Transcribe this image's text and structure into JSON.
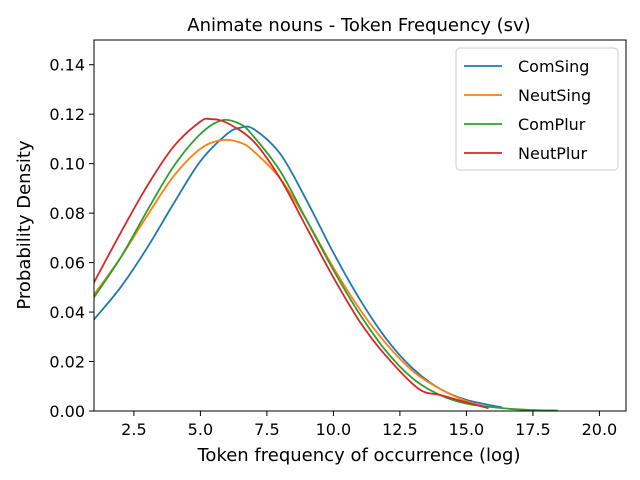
{
  "chart_data": {
    "type": "line",
    "title": "Animate nouns - Token Frequency (sv)",
    "xlabel": "Token frequency of occurrence (log)",
    "ylabel": "Probability Density",
    "xlim": [
      1.0,
      21.0
    ],
    "ylim": [
      0.0,
      0.15
    ],
    "xticks": [
      2.5,
      5.0,
      7.5,
      10.0,
      12.5,
      15.0,
      17.5,
      20.0
    ],
    "xtick_labels": [
      "2.5",
      "5.0",
      "7.5",
      "10.0",
      "12.5",
      "15.0",
      "17.5",
      "20.0"
    ],
    "yticks": [
      0.0,
      0.02,
      0.04,
      0.06,
      0.08,
      0.1,
      0.12,
      0.14
    ],
    "ytick_labels": [
      "0.00",
      "0.02",
      "0.04",
      "0.06",
      "0.08",
      "0.10",
      "0.12",
      "0.14"
    ],
    "grid": false,
    "legend_position": "top-right",
    "series": [
      {
        "name": "ComSing",
        "color": "#1f77b4",
        "x": [
          1.0,
          2.0,
          3.0,
          4.0,
          5.0,
          6.0,
          6.5,
          7.0,
          8.0,
          9.0,
          10.0,
          11.0,
          12.0,
          13.0,
          14.0,
          15.0,
          16.3
        ],
        "y": [
          0.037,
          0.05,
          0.066,
          0.084,
          0.101,
          0.112,
          0.1145,
          0.114,
          0.104,
          0.085,
          0.064,
          0.045,
          0.029,
          0.017,
          0.009,
          0.0045,
          0.0015
        ]
      },
      {
        "name": "NeutSing",
        "color": "#ff7f0e",
        "x": [
          1.0,
          2.0,
          3.0,
          4.0,
          5.0,
          5.8,
          6.5,
          7.0,
          8.0,
          9.0,
          10.0,
          11.0,
          12.0,
          13.0,
          14.0,
          15.0,
          15.8
        ],
        "y": [
          0.047,
          0.062,
          0.079,
          0.095,
          0.106,
          0.1095,
          0.1085,
          0.105,
          0.094,
          0.077,
          0.058,
          0.041,
          0.027,
          0.016,
          0.009,
          0.004,
          0.0015
        ]
      },
      {
        "name": "ComPlur",
        "color": "#2ca02c",
        "x": [
          1.0,
          2.0,
          3.0,
          4.0,
          5.0,
          5.8,
          6.5,
          7.0,
          8.0,
          9.0,
          10.0,
          11.0,
          12.0,
          13.0,
          14.0,
          15.0,
          16.5,
          17.5,
          18.4
        ],
        "y": [
          0.046,
          0.062,
          0.081,
          0.099,
          0.112,
          0.1175,
          0.116,
          0.111,
          0.097,
          0.077,
          0.057,
          0.039,
          0.024,
          0.013,
          0.0065,
          0.003,
          0.001,
          0.0004,
          0.0002
        ]
      },
      {
        "name": "NeutPlur",
        "color": "#d62728",
        "x": [
          1.0,
          2.0,
          3.0,
          4.0,
          5.0,
          5.4,
          6.0,
          7.0,
          8.0,
          9.0,
          10.0,
          11.0,
          12.0,
          13.2,
          14.0,
          15.0,
          15.8
        ],
        "y": [
          0.052,
          0.072,
          0.091,
          0.107,
          0.117,
          0.118,
          0.1165,
          0.109,
          0.094,
          0.074,
          0.054,
          0.036,
          0.022,
          0.009,
          0.0065,
          0.0035,
          0.0012
        ]
      }
    ]
  }
}
